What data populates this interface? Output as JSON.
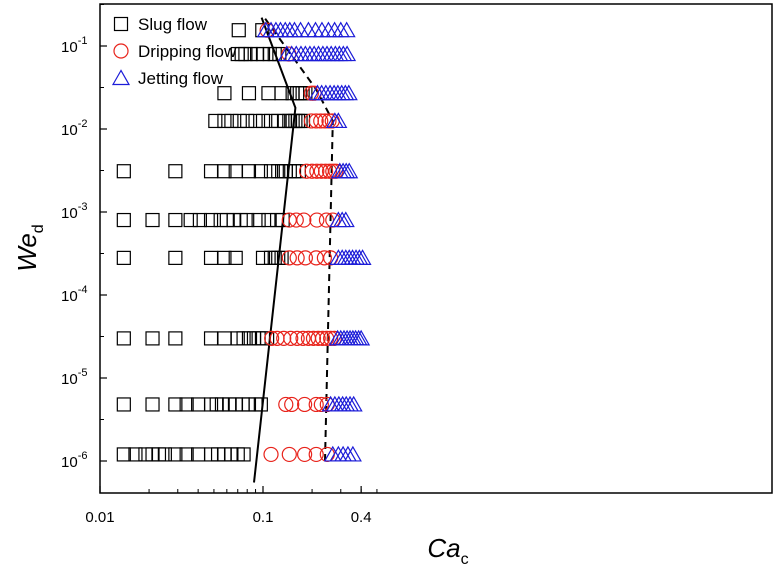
{
  "chart_data": {
    "type": "scatter",
    "xlabel": {
      "main": "Ca",
      "sub": "c"
    },
    "ylabel": {
      "main": "We",
      "sub": "d"
    },
    "xscale": "log",
    "yscale": "log",
    "xlim": [
      0.01,
      0.5
    ],
    "ylim": [
      4e-07,
      0.5
    ],
    "xticks": [
      {
        "value": 0.01,
        "label": "0.01"
      },
      {
        "value": 0.1,
        "label": "0.1"
      },
      {
        "value": 0.4,
        "label": "0.4"
      }
    ],
    "yticks": [
      {
        "value": 1e-06,
        "base": "10",
        "exp": "-6"
      },
      {
        "value": 1e-05,
        "base": "10",
        "exp": "-5"
      },
      {
        "value": 0.0001,
        "base": "10",
        "exp": "-4"
      },
      {
        "value": 0.001,
        "base": "10",
        "exp": "-3"
      },
      {
        "value": 0.01,
        "base": "10",
        "exp": "-2"
      },
      {
        "value": 0.1,
        "base": "10",
        "exp": "-1"
      }
    ],
    "legend_position": "top-left",
    "series": [
      {
        "name": "Slug flow",
        "marker": "square",
        "color": "#000000",
        "points": [
          [
            0.014,
            1.2e-06
          ],
          [
            0.0165,
            1.2e-06
          ],
          [
            0.019,
            1.2e-06
          ],
          [
            0.021,
            1.2e-06
          ],
          [
            0.023,
            1.2e-06
          ],
          [
            0.025,
            1.2e-06
          ],
          [
            0.029,
            1.2e-06
          ],
          [
            0.034,
            1.2e-06
          ],
          [
            0.04,
            1.2e-06
          ],
          [
            0.048,
            1.2e-06
          ],
          [
            0.053,
            1.2e-06
          ],
          [
            0.058,
            1.2e-06
          ],
          [
            0.064,
            1.2e-06
          ],
          [
            0.07,
            1.2e-06
          ],
          [
            0.076,
            1.2e-06
          ],
          [
            0.014,
            4.8e-06
          ],
          [
            0.021,
            4.8e-06
          ],
          [
            0.029,
            4.8e-06
          ],
          [
            0.034,
            4.8e-06
          ],
          [
            0.04,
            4.8e-06
          ],
          [
            0.048,
            4.8e-06
          ],
          [
            0.052,
            4.8e-06
          ],
          [
            0.056,
            4.8e-06
          ],
          [
            0.062,
            4.8e-06
          ],
          [
            0.068,
            4.8e-06
          ],
          [
            0.075,
            4.8e-06
          ],
          [
            0.082,
            4.8e-06
          ],
          [
            0.09,
            4.8e-06
          ],
          [
            0.097,
            4.8e-06
          ],
          [
            0.014,
            3e-05
          ],
          [
            0.021,
            3e-05
          ],
          [
            0.029,
            3e-05
          ],
          [
            0.048,
            3e-05
          ],
          [
            0.058,
            3e-05
          ],
          [
            0.07,
            3e-05
          ],
          [
            0.076,
            3e-05
          ],
          [
            0.082,
            3e-05
          ],
          [
            0.088,
            3e-05
          ],
          [
            0.094,
            3e-05
          ],
          [
            0.1,
            3e-05
          ],
          [
            0.106,
            3e-05
          ],
          [
            0.014,
            0.00028
          ],
          [
            0.029,
            0.00028
          ],
          [
            0.048,
            0.00028
          ],
          [
            0.058,
            0.00028
          ],
          [
            0.068,
            0.00028
          ],
          [
            0.1,
            0.00028
          ],
          [
            0.112,
            0.00028
          ],
          [
            0.118,
            0.00028
          ],
          [
            0.124,
            0.00028
          ],
          [
            0.13,
            0.00028
          ],
          [
            0.014,
            0.0008
          ],
          [
            0.021,
            0.0008
          ],
          [
            0.029,
            0.0008
          ],
          [
            0.036,
            0.0008
          ],
          [
            0.041,
            0.0008
          ],
          [
            0.048,
            0.0008
          ],
          [
            0.055,
            0.0008
          ],
          [
            0.06,
            0.0008
          ],
          [
            0.066,
            0.0008
          ],
          [
            0.073,
            0.0008
          ],
          [
            0.08,
            0.0008
          ],
          [
            0.094,
            0.0008
          ],
          [
            0.108,
            0.0008
          ],
          [
            0.122,
            0.0008
          ],
          [
            0.132,
            0.0008
          ],
          [
            0.014,
            0.0031
          ],
          [
            0.029,
            0.0031
          ],
          [
            0.048,
            0.0031
          ],
          [
            0.058,
            0.0031
          ],
          [
            0.068,
            0.0031
          ],
          [
            0.082,
            0.0031
          ],
          [
            0.097,
            0.0031
          ],
          [
            0.112,
            0.0031
          ],
          [
            0.124,
            0.0031
          ],
          [
            0.131,
            0.0031
          ],
          [
            0.138,
            0.0031
          ],
          [
            0.146,
            0.0031
          ],
          [
            0.155,
            0.0031
          ],
          [
            0.166,
            0.0031
          ],
          [
            0.051,
            0.0125
          ],
          [
            0.058,
            0.0125
          ],
          [
            0.064,
            0.0125
          ],
          [
            0.072,
            0.0125
          ],
          [
            0.08,
            0.0125
          ],
          [
            0.09,
            0.0125
          ],
          [
            0.1,
            0.0125
          ],
          [
            0.112,
            0.0125
          ],
          [
            0.124,
            0.0125
          ],
          [
            0.136,
            0.0125
          ],
          [
            0.145,
            0.0125
          ],
          [
            0.152,
            0.0125
          ],
          [
            0.158,
            0.0125
          ],
          [
            0.164,
            0.0125
          ],
          [
            0.17,
            0.0125
          ],
          [
            0.176,
            0.0125
          ],
          [
            0.058,
            0.027
          ],
          [
            0.082,
            0.027
          ],
          [
            0.108,
            0.027
          ],
          [
            0.13,
            0.027
          ],
          [
            0.152,
            0.027
          ],
          [
            0.162,
            0.027
          ],
          [
            0.168,
            0.027
          ],
          [
            0.175,
            0.027
          ],
          [
            0.182,
            0.027
          ],
          [
            0.07,
            0.08
          ],
          [
            0.074,
            0.08
          ],
          [
            0.078,
            0.08
          ],
          [
            0.084,
            0.08
          ],
          [
            0.092,
            0.08
          ],
          [
            0.1,
            0.08
          ],
          [
            0.11,
            0.08
          ],
          [
            0.118,
            0.08
          ],
          [
            0.126,
            0.08
          ],
          [
            0.071,
            0.155
          ],
          [
            0.099,
            0.155
          ]
        ]
      },
      {
        "name": "Dripping flow",
        "marker": "circle",
        "color": "#e8231b",
        "points": [
          [
            0.112,
            1.2e-06
          ],
          [
            0.145,
            1.2e-06
          ],
          [
            0.18,
            1.2e-06
          ],
          [
            0.212,
            1.2e-06
          ],
          [
            0.248,
            1.2e-06
          ],
          [
            0.138,
            4.8e-06
          ],
          [
            0.15,
            4.8e-06
          ],
          [
            0.18,
            4.8e-06
          ],
          [
            0.212,
            4.8e-06
          ],
          [
            0.228,
            4.8e-06
          ],
          [
            0.248,
            4.8e-06
          ],
          [
            0.113,
            3e-05
          ],
          [
            0.122,
            3e-05
          ],
          [
            0.134,
            3e-05
          ],
          [
            0.148,
            3e-05
          ],
          [
            0.162,
            3e-05
          ],
          [
            0.176,
            3e-05
          ],
          [
            0.19,
            3e-05
          ],
          [
            0.204,
            3e-05
          ],
          [
            0.218,
            3e-05
          ],
          [
            0.232,
            3e-05
          ],
          [
            0.246,
            3e-05
          ],
          [
            0.26,
            3e-05
          ],
          [
            0.274,
            3e-05
          ],
          [
            0.145,
            0.00028
          ],
          [
            0.162,
            0.00028
          ],
          [
            0.182,
            0.00028
          ],
          [
            0.212,
            0.00028
          ],
          [
            0.238,
            0.00028
          ],
          [
            0.26,
            0.00028
          ],
          [
            0.145,
            0.0008
          ],
          [
            0.16,
            0.0008
          ],
          [
            0.178,
            0.0008
          ],
          [
            0.214,
            0.0008
          ],
          [
            0.245,
            0.0008
          ],
          [
            0.268,
            0.0008
          ],
          [
            0.185,
            0.0031
          ],
          [
            0.2,
            0.0031
          ],
          [
            0.214,
            0.0031
          ],
          [
            0.228,
            0.0031
          ],
          [
            0.242,
            0.0031
          ],
          [
            0.256,
            0.0031
          ],
          [
            0.268,
            0.0031
          ],
          [
            0.28,
            0.0031
          ],
          [
            0.198,
            0.0125
          ],
          [
            0.212,
            0.0125
          ],
          [
            0.226,
            0.0125
          ],
          [
            0.24,
            0.0125
          ],
          [
            0.254,
            0.0125
          ],
          [
            0.266,
            0.0125
          ],
          [
            0.198,
            0.027
          ],
          [
            0.206,
            0.027
          ],
          [
            0.144,
            0.08
          ],
          [
            0.106,
            0.155
          ]
        ]
      },
      {
        "name": "Jetting flow",
        "marker": "triangle",
        "color": "#1c1cd8",
        "points": [
          [
            0.268,
            1.2e-06
          ],
          [
            0.29,
            1.2e-06
          ],
          [
            0.31,
            1.2e-06
          ],
          [
            0.332,
            1.2e-06
          ],
          [
            0.356,
            1.2e-06
          ],
          [
            0.26,
            4.8e-06
          ],
          [
            0.276,
            4.8e-06
          ],
          [
            0.292,
            4.8e-06
          ],
          [
            0.308,
            4.8e-06
          ],
          [
            0.324,
            4.8e-06
          ],
          [
            0.342,
            4.8e-06
          ],
          [
            0.36,
            4.8e-06
          ],
          [
            0.287,
            3e-05
          ],
          [
            0.3,
            3e-05
          ],
          [
            0.314,
            3e-05
          ],
          [
            0.328,
            3e-05
          ],
          [
            0.342,
            3e-05
          ],
          [
            0.356,
            3e-05
          ],
          [
            0.37,
            3e-05
          ],
          [
            0.386,
            3e-05
          ],
          [
            0.4,
            3e-05
          ],
          [
            0.29,
            0.00028
          ],
          [
            0.306,
            0.00028
          ],
          [
            0.322,
            0.00028
          ],
          [
            0.338,
            0.00028
          ],
          [
            0.354,
            0.00028
          ],
          [
            0.372,
            0.00028
          ],
          [
            0.39,
            0.00028
          ],
          [
            0.408,
            0.00028
          ],
          [
            0.29,
            0.0008
          ],
          [
            0.306,
            0.0008
          ],
          [
            0.322,
            0.0008
          ],
          [
            0.296,
            0.0031
          ],
          [
            0.31,
            0.0031
          ],
          [
            0.324,
            0.0031
          ],
          [
            0.338,
            0.0031
          ],
          [
            0.276,
            0.0125
          ],
          [
            0.29,
            0.0125
          ],
          [
            0.216,
            0.027
          ],
          [
            0.229,
            0.027
          ],
          [
            0.243,
            0.027
          ],
          [
            0.258,
            0.027
          ],
          [
            0.273,
            0.027
          ],
          [
            0.288,
            0.027
          ],
          [
            0.304,
            0.027
          ],
          [
            0.32,
            0.027
          ],
          [
            0.336,
            0.027
          ],
          [
            0.14,
            0.08
          ],
          [
            0.15,
            0.08
          ],
          [
            0.16,
            0.08
          ],
          [
            0.171,
            0.08
          ],
          [
            0.182,
            0.08
          ],
          [
            0.194,
            0.08
          ],
          [
            0.206,
            0.08
          ],
          [
            0.219,
            0.08
          ],
          [
            0.233,
            0.08
          ],
          [
            0.247,
            0.08
          ],
          [
            0.262,
            0.08
          ],
          [
            0.278,
            0.08
          ],
          [
            0.294,
            0.08
          ],
          [
            0.311,
            0.08
          ],
          [
            0.328,
            0.08
          ],
          [
            0.104,
            0.155
          ],
          [
            0.112,
            0.155
          ],
          [
            0.12,
            0.155
          ],
          [
            0.128,
            0.155
          ],
          [
            0.137,
            0.155
          ],
          [
            0.146,
            0.155
          ],
          [
            0.156,
            0.155
          ],
          [
            0.17,
            0.155
          ],
          [
            0.19,
            0.155
          ],
          [
            0.21,
            0.155
          ],
          [
            0.23,
            0.155
          ],
          [
            0.252,
            0.155
          ],
          [
            0.275,
            0.155
          ],
          [
            0.3,
            0.155
          ],
          [
            0.326,
            0.155
          ]
        ]
      }
    ],
    "boundary_lines": [
      {
        "style": "solid",
        "points": [
          [
            0.088,
            5.5e-07
          ],
          [
            0.158,
            0.018
          ],
          [
            0.098,
            0.22
          ]
        ]
      },
      {
        "style": "dashed",
        "points": [
          [
            0.24,
            1e-06
          ],
          [
            0.268,
            0.0125
          ],
          [
            0.212,
            0.03
          ],
          [
            0.102,
            0.22
          ]
        ]
      }
    ]
  }
}
